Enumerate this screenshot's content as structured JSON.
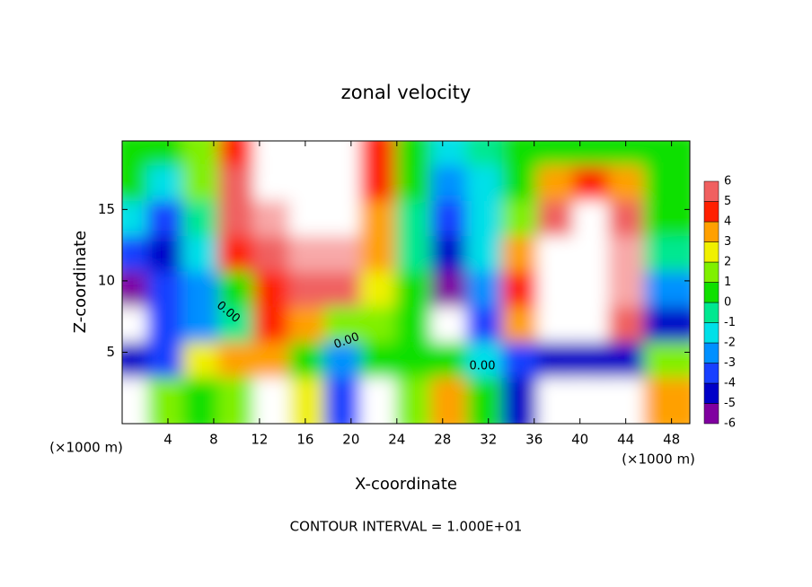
{
  "chart_data": {
    "type": "filled-contour",
    "title": "zonal velocity",
    "x_label": "X-coordinate",
    "y_label": "Z-coordinate",
    "x_unit": "(×1000 m)",
    "y_unit": "(×1000 m)",
    "footer": "CONTOUR INTERVAL = 1.000E+01",
    "xlim": [
      0,
      49.6
    ],
    "ylim": [
      0,
      19.8
    ],
    "xticks": [
      4,
      8,
      12,
      16,
      20,
      24,
      28,
      32,
      36,
      40,
      44,
      48
    ],
    "yticks": [
      5,
      10,
      15
    ],
    "z": [
      [
        0.5,
        0,
        1,
        4,
        8,
        8,
        8,
        4,
        0,
        -1.5,
        -1,
        0,
        0.5,
        0.5,
        0,
        0.5
      ],
      [
        0,
        -2,
        1,
        5,
        8,
        8,
        8,
        4,
        0,
        -3,
        -1.5,
        0.5,
        3,
        4,
        3,
        0.5
      ],
      [
        -2,
        -4,
        -1,
        5,
        6,
        8,
        8,
        3,
        -1,
        -4,
        -2,
        1,
        5,
        8,
        5,
        0
      ],
      [
        -4,
        -5,
        -2,
        4,
        5,
        6,
        6,
        3,
        -1,
        -5,
        -2,
        3,
        8,
        8,
        6,
        -1
      ],
      [
        -6,
        -4,
        -3,
        0,
        4,
        5,
        5,
        2,
        0,
        -6,
        -3,
        4,
        8,
        8,
        6,
        -3
      ],
      [
        -8,
        -4,
        -3,
        -1,
        4,
        3,
        1,
        1,
        0,
        -8,
        -4,
        3,
        8,
        8,
        5,
        -5
      ],
      [
        -5,
        -4,
        2,
        3,
        3,
        0,
        -3,
        0,
        0,
        0.5,
        -2,
        -4,
        -5,
        -5,
        -5,
        1
      ],
      [
        8,
        1,
        0,
        1,
        8,
        2,
        -4,
        8,
        1,
        3,
        0,
        -5,
        8,
        8,
        8,
        3
      ]
    ],
    "colorbar_ticks": [
      -6,
      -5,
      -4,
      -3,
      -2,
      -1,
      0,
      1,
      2,
      3,
      4,
      5,
      6
    ],
    "colors": [
      "#8000a0",
      "#0000c8",
      "#1840ff",
      "#0090ff",
      "#00e0e8",
      "#00e890",
      "#10e000",
      "#80f000",
      "#f0f000",
      "#ffa000",
      "#ff2000",
      "#f06060",
      "#f8a8a8"
    ],
    "out_of_range_color": "#ffffff",
    "contour_labels": [
      "0.00",
      "0.00",
      "0.00"
    ]
  }
}
